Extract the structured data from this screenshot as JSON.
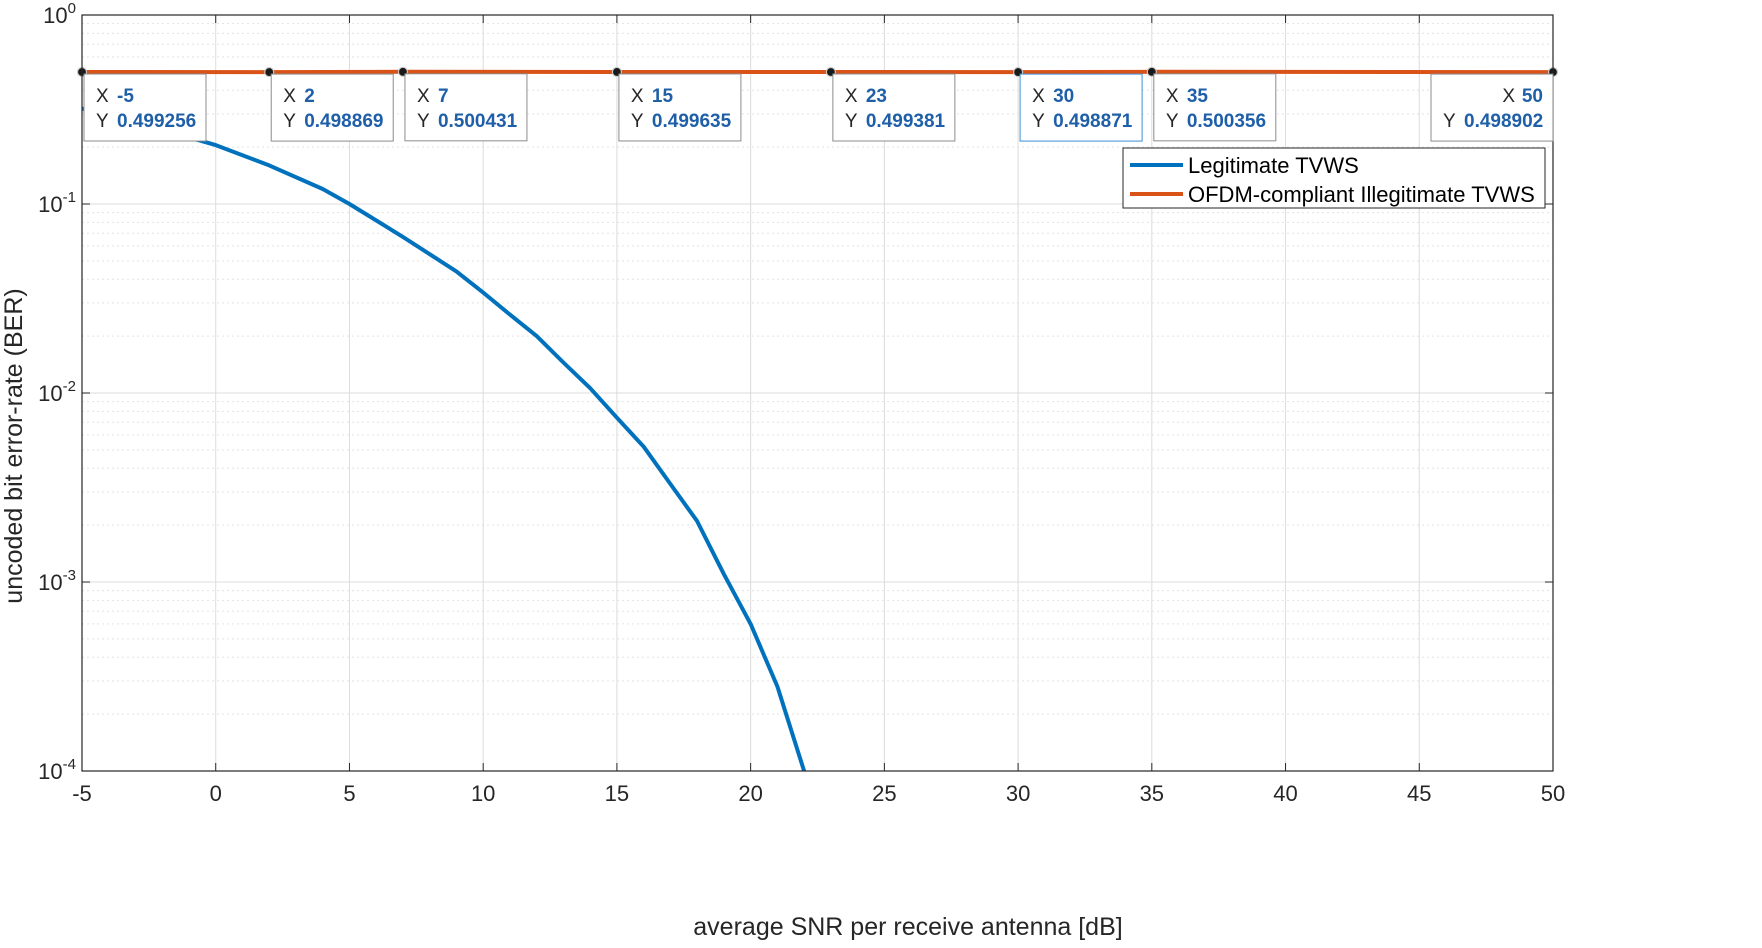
{
  "chart_data": {
    "type": "line",
    "xlabel": "average SNR per receive antenna [dB]",
    "ylabel": "uncoded bit error-rate (BER)",
    "xlim": [
      -5,
      50
    ],
    "ylim": [
      0.0001,
      1
    ],
    "yscale": "log",
    "grid": true,
    "minor_grid": true,
    "legend_position": "top-right (inside axes)",
    "x_ticks": [
      -5,
      0,
      5,
      10,
      15,
      20,
      25,
      30,
      35,
      40,
      45,
      50
    ],
    "x_tick_labels": [
      "-5",
      "0",
      "5",
      "10",
      "15",
      "20",
      "25",
      "30",
      "35",
      "40",
      "45",
      "50"
    ],
    "y_ticks": [
      {
        "value": 1,
        "base": "10",
        "exp": "0"
      },
      {
        "value": 0.1,
        "base": "10",
        "exp": "-1"
      },
      {
        "value": 0.01,
        "base": "10",
        "exp": "-2"
      },
      {
        "value": 0.001,
        "base": "10",
        "exp": "-3"
      },
      {
        "value": 0.0001,
        "base": "10",
        "exp": "-4"
      }
    ],
    "series": [
      {
        "name": "Legitimate TVWS",
        "color": "#0072BD",
        "x": [
          -5,
          -4,
          -3,
          -2,
          -1,
          0,
          2,
          4,
          5,
          7,
          9,
          10,
          11,
          12,
          13,
          14,
          15,
          16,
          17,
          18,
          19,
          20,
          21,
          22
        ],
        "y": [
          0.32,
          0.29,
          0.27,
          0.245,
          0.225,
          0.205,
          0.16,
          0.12,
          0.1,
          0.067,
          0.044,
          0.034,
          0.026,
          0.02,
          0.0145,
          0.0106,
          0.0074,
          0.0052,
          0.0033,
          0.0021,
          0.0011,
          0.0006,
          0.00028,
          0.0001
        ]
      },
      {
        "name": "OFDM-compliant Illegitimate TVWS",
        "color": "#D95319",
        "x": [
          -5,
          2,
          7,
          15,
          23,
          30,
          35,
          50
        ],
        "y": [
          0.499256,
          0.498869,
          0.500431,
          0.499635,
          0.499381,
          0.498871,
          0.500356,
          0.498902
        ]
      }
    ],
    "datatips": [
      {
        "x_key": "X",
        "y_key": "Y",
        "x": "-5",
        "y": "0.499256"
      },
      {
        "x_key": "X",
        "y_key": "Y",
        "x": "2",
        "y": "0.498869"
      },
      {
        "x_key": "X",
        "y_key": "Y",
        "x": "7",
        "y": "0.500431"
      },
      {
        "x_key": "X",
        "y_key": "Y",
        "x": "15",
        "y": "0.499635"
      },
      {
        "x_key": "X",
        "y_key": "Y",
        "x": "23",
        "y": "0.499381"
      },
      {
        "x_key": "X",
        "y_key": "Y",
        "x": "30",
        "y": "0.498871",
        "selected": true
      },
      {
        "x_key": "X",
        "y_key": "Y",
        "x": "35",
        "y": "0.500356"
      },
      {
        "x_key": "X",
        "y_key": "Y",
        "x": "50",
        "y": "0.498902",
        "align": "right"
      }
    ]
  }
}
